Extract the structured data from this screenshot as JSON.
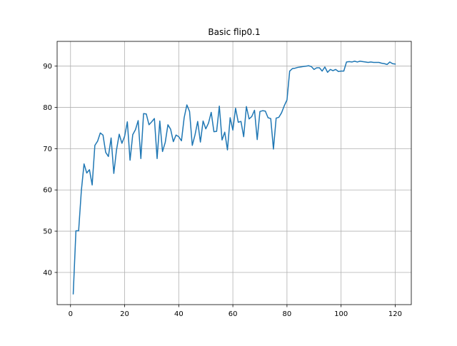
{
  "chart_data": {
    "type": "line",
    "title": "Basic flip0.1",
    "xlabel": "",
    "ylabel": "",
    "xlim": [
      -4.95,
      125.95
    ],
    "ylim": [
      32.2,
      96.0
    ],
    "xticks": [
      0,
      20,
      40,
      60,
      80,
      100,
      120
    ],
    "yticks": [
      40,
      50,
      60,
      70,
      80,
      90
    ],
    "grid": true,
    "legend": "none",
    "series": [
      {
        "color": "#1f77b4",
        "x": [
          1,
          2,
          3,
          4,
          5,
          6,
          7,
          8,
          9,
          10,
          11,
          12,
          13,
          14,
          15,
          16,
          17,
          18,
          19,
          20,
          21,
          22,
          23,
          24,
          25,
          26,
          27,
          28,
          29,
          30,
          31,
          32,
          33,
          34,
          35,
          36,
          37,
          38,
          39,
          40,
          41,
          42,
          43,
          44,
          45,
          46,
          47,
          48,
          49,
          50,
          51,
          52,
          53,
          54,
          55,
          56,
          57,
          58,
          59,
          60,
          61,
          62,
          63,
          64,
          65,
          66,
          67,
          68,
          69,
          70,
          71,
          72,
          73,
          74,
          75,
          76,
          77,
          78,
          79,
          80,
          81,
          82,
          83,
          84,
          85,
          86,
          87,
          88,
          89,
          90,
          91,
          92,
          93,
          94,
          95,
          96,
          97,
          98,
          99,
          100,
          101,
          102,
          103,
          104,
          105,
          106,
          107,
          108,
          109,
          110,
          111,
          112,
          113,
          114,
          115,
          116,
          117,
          118,
          119,
          120
        ],
        "y": [
          34.8,
          50.1,
          50.1,
          59.8,
          66.3,
          64.1,
          64.9,
          61.2,
          70.8,
          71.8,
          73.8,
          73.3,
          69.1,
          68.1,
          72.6,
          64.0,
          69.7,
          73.5,
          71.3,
          73.0,
          76.5,
          67.2,
          73.4,
          74.6,
          76.8,
          67.6,
          78.5,
          78.4,
          75.8,
          76.5,
          77.3,
          67.6,
          76.7,
          69.3,
          71.5,
          75.8,
          74.7,
          71.7,
          73.3,
          72.9,
          71.9,
          77.5,
          80.6,
          79.0,
          70.8,
          73.3,
          76.6,
          71.6,
          76.7,
          74.8,
          76.2,
          78.8,
          74.1,
          74.2,
          80.3,
          72.1,
          74.0,
          69.7,
          77.5,
          74.5,
          79.8,
          76.4,
          76.6,
          72.9,
          80.2,
          77.2,
          77.8,
          79.3,
          72.2,
          79.0,
          79.2,
          79.1,
          77.5,
          77.3,
          69.9,
          77.4,
          77.6,
          78.7,
          80.4,
          81.8,
          88.8,
          89.4,
          89.5,
          89.7,
          89.8,
          89.9,
          90.0,
          90.1,
          89.9,
          89.2,
          89.6,
          89.6,
          88.8,
          89.8,
          88.5,
          89.2,
          88.9,
          89.2,
          88.7,
          88.8,
          88.8,
          91.0,
          91.1,
          91.0,
          91.2,
          91.0,
          91.2,
          91.1,
          91.0,
          90.9,
          91.0,
          90.9,
          90.9,
          90.9,
          90.7,
          90.6,
          90.4,
          91.0,
          90.6,
          90.5
        ]
      }
    ]
  }
}
